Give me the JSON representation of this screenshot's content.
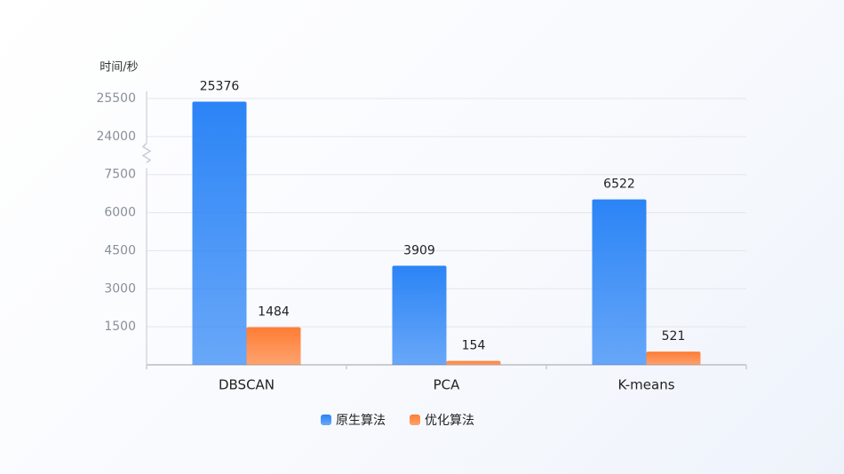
{
  "chart_data": {
    "type": "bar",
    "y_label": "时间/秒",
    "categories": [
      "DBSCAN",
      "PCA",
      "K-means"
    ],
    "series": [
      {
        "name": "原生算法",
        "color": "#2b84f6",
        "values": [
          25376,
          3909,
          6522
        ]
      },
      {
        "name": "优化算法",
        "color": "#ff7d33",
        "values": [
          1484,
          154,
          521
        ]
      }
    ],
    "ylim": [
      0,
      25500
    ],
    "yticks": [
      1500,
      3000,
      4500,
      6000,
      7500,
      24000,
      25500
    ],
    "grid": true
  }
}
